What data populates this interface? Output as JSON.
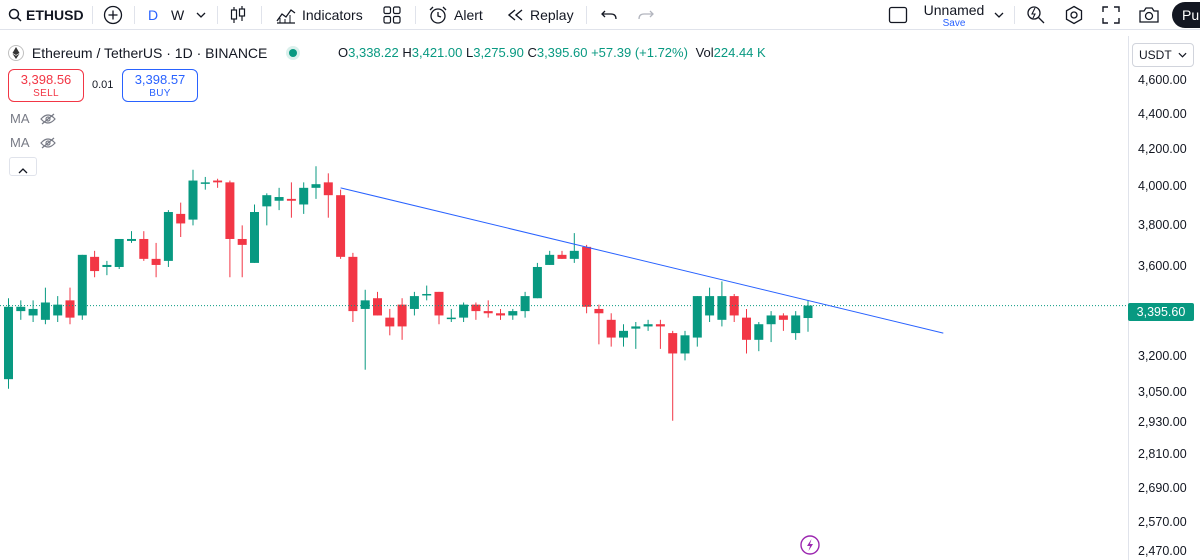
{
  "toolbar": {
    "symbol": "ETHUSD",
    "interval_selected": "D",
    "interval_other": "W",
    "indicators_label": "Indicators",
    "alert_label": "Alert",
    "replay_label": "Replay",
    "layout_name": "Unnamed",
    "save_label": "Save",
    "publish_label": "Pu"
  },
  "legend": {
    "title": "Ethereum / TetherUS · 1D · BINANCE",
    "open_label": "O",
    "open": "3,338.22",
    "high_label": "H",
    "high": "3,421.00",
    "low_label": "L",
    "low": "3,275.90",
    "close_label": "C",
    "close": "3,395.60",
    "change": "+57.39 (+1.72%)",
    "vol_label": "Vol",
    "volume": "224.44 K"
  },
  "trade": {
    "sell_price": "3,398.56",
    "sell_label": "SELL",
    "spread": "0.01",
    "buy_price": "3,398.57",
    "buy_label": "BUY"
  },
  "indicators": [
    {
      "label": "MA",
      "icon": "eye-hidden-icon"
    },
    {
      "label": "MA",
      "icon": "eye-hidden-icon"
    }
  ],
  "price_scale": {
    "currency": "USDT",
    "ticks": [
      "4,600.00",
      "4,400.00",
      "4,200.00",
      "4,000.00",
      "3,800.00",
      "3,600.00",
      "3,200.00",
      "3,050.00",
      "2,930.00",
      "2,810.00",
      "2,690.00",
      "2,570.00",
      "2,470.00"
    ],
    "last_price": "3,395.60"
  },
  "colors": {
    "up": "#089981",
    "down": "#f23645",
    "trendline": "#2962ff",
    "accent": "#2962ff",
    "flash": "#9c27b0"
  },
  "chart_data": {
    "type": "candlestick",
    "symbol": "Ethereum / TetherUS",
    "interval": "1D",
    "exchange": "BINANCE",
    "y_axis_scale": "log",
    "y_range": [
      2450,
      4700
    ],
    "candles": [
      {
        "o": 3070,
        "h": 3430,
        "l": 3030,
        "c": 3390
      },
      {
        "o": 3370,
        "h": 3420,
        "l": 3330,
        "c": 3390
      },
      {
        "o": 3350,
        "h": 3420,
        "l": 3320,
        "c": 3380
      },
      {
        "o": 3330,
        "h": 3480,
        "l": 3310,
        "c": 3410
      },
      {
        "o": 3350,
        "h": 3440,
        "l": 3320,
        "c": 3400
      },
      {
        "o": 3420,
        "h": 3480,
        "l": 3310,
        "c": 3340
      },
      {
        "o": 3350,
        "h": 3640,
        "l": 3330,
        "c": 3640
      },
      {
        "o": 3630,
        "h": 3660,
        "l": 3530,
        "c": 3560
      },
      {
        "o": 3580,
        "h": 3610,
        "l": 3540,
        "c": 3590
      },
      {
        "o": 3580,
        "h": 3720,
        "l": 3570,
        "c": 3720
      },
      {
        "o": 3710,
        "h": 3760,
        "l": 3700,
        "c": 3720
      },
      {
        "o": 3720,
        "h": 3760,
        "l": 3610,
        "c": 3620
      },
      {
        "o": 3620,
        "h": 3700,
        "l": 3530,
        "c": 3590
      },
      {
        "o": 3610,
        "h": 3870,
        "l": 3580,
        "c": 3860
      },
      {
        "o": 3850,
        "h": 3910,
        "l": 3730,
        "c": 3800
      },
      {
        "o": 3820,
        "h": 4090,
        "l": 3790,
        "c": 4030
      },
      {
        "o": 4020,
        "h": 4050,
        "l": 3980,
        "c": 4020
      },
      {
        "o": 4030,
        "h": 4040,
        "l": 3990,
        "c": 4020
      },
      {
        "o": 4020,
        "h": 4030,
        "l": 3530,
        "c": 3720
      },
      {
        "o": 3720,
        "h": 3790,
        "l": 3530,
        "c": 3690
      },
      {
        "o": 3600,
        "h": 3900,
        "l": 3600,
        "c": 3860
      },
      {
        "o": 3890,
        "h": 3960,
        "l": 3790,
        "c": 3950
      },
      {
        "o": 3920,
        "h": 3990,
        "l": 3870,
        "c": 3940
      },
      {
        "o": 3930,
        "h": 4020,
        "l": 3830,
        "c": 3920
      },
      {
        "o": 3900,
        "h": 4020,
        "l": 3850,
        "c": 3990
      },
      {
        "o": 3990,
        "h": 4110,
        "l": 3930,
        "c": 4010
      },
      {
        "o": 4020,
        "h": 4070,
        "l": 3830,
        "c": 3950
      },
      {
        "o": 3950,
        "h": 3980,
        "l": 3620,
        "c": 3630
      },
      {
        "o": 3630,
        "h": 3650,
        "l": 3320,
        "c": 3370
      },
      {
        "o": 3380,
        "h": 3470,
        "l": 3110,
        "c": 3420
      },
      {
        "o": 3430,
        "h": 3460,
        "l": 3350,
        "c": 3350
      },
      {
        "o": 3340,
        "h": 3380,
        "l": 3260,
        "c": 3300
      },
      {
        "o": 3400,
        "h": 3430,
        "l": 3240,
        "c": 3300
      },
      {
        "o": 3380,
        "h": 3460,
        "l": 3350,
        "c": 3440
      },
      {
        "o": 3450,
        "h": 3490,
        "l": 3420,
        "c": 3450
      },
      {
        "o": 3460,
        "h": 3460,
        "l": 3310,
        "c": 3350
      },
      {
        "o": 3340,
        "h": 3380,
        "l": 3320,
        "c": 3340
      },
      {
        "o": 3340,
        "h": 3410,
        "l": 3320,
        "c": 3400
      },
      {
        "o": 3400,
        "h": 3410,
        "l": 3330,
        "c": 3370
      },
      {
        "o": 3370,
        "h": 3420,
        "l": 3340,
        "c": 3360
      },
      {
        "o": 3360,
        "h": 3380,
        "l": 3330,
        "c": 3350
      },
      {
        "o": 3350,
        "h": 3380,
        "l": 3330,
        "c": 3370
      },
      {
        "o": 3370,
        "h": 3460,
        "l": 3340,
        "c": 3440
      },
      {
        "o": 3430,
        "h": 3600,
        "l": 3430,
        "c": 3580
      },
      {
        "o": 3590,
        "h": 3660,
        "l": 3590,
        "c": 3640
      },
      {
        "o": 3640,
        "h": 3660,
        "l": 3620,
        "c": 3620
      },
      {
        "o": 3620,
        "h": 3750,
        "l": 3600,
        "c": 3660
      },
      {
        "o": 3680,
        "h": 3690,
        "l": 3360,
        "c": 3390
      },
      {
        "o": 3380,
        "h": 3400,
        "l": 3220,
        "c": 3360
      },
      {
        "o": 3330,
        "h": 3360,
        "l": 3210,
        "c": 3250
      },
      {
        "o": 3250,
        "h": 3310,
        "l": 3210,
        "c": 3280
      },
      {
        "o": 3290,
        "h": 3320,
        "l": 3200,
        "c": 3300
      },
      {
        "o": 3300,
        "h": 3330,
        "l": 3280,
        "c": 3310
      },
      {
        "o": 3310,
        "h": 3330,
        "l": 3200,
        "c": 3300
      },
      {
        "o": 3270,
        "h": 3280,
        "l": 2900,
        "c": 3180
      },
      {
        "o": 3180,
        "h": 3280,
        "l": 3150,
        "c": 3260
      },
      {
        "o": 3250,
        "h": 3440,
        "l": 3210,
        "c": 3440
      },
      {
        "o": 3350,
        "h": 3480,
        "l": 3320,
        "c": 3440
      },
      {
        "o": 3330,
        "h": 3510,
        "l": 3300,
        "c": 3440
      },
      {
        "o": 3440,
        "h": 3450,
        "l": 3320,
        "c": 3350
      },
      {
        "o": 3340,
        "h": 3380,
        "l": 3180,
        "c": 3240
      },
      {
        "o": 3240,
        "h": 3320,
        "l": 3190,
        "c": 3310
      },
      {
        "o": 3310,
        "h": 3370,
        "l": 3230,
        "c": 3350
      },
      {
        "o": 3350,
        "h": 3360,
        "l": 3280,
        "c": 3330
      },
      {
        "o": 3270,
        "h": 3370,
        "l": 3240,
        "c": 3350
      },
      {
        "o": 3338.22,
        "h": 3421.0,
        "l": 3275.9,
        "c": 3395.6
      }
    ],
    "trendline": {
      "from_bar": 27,
      "from_price": 3990,
      "to_bar": 76,
      "to_price": 3270
    }
  }
}
